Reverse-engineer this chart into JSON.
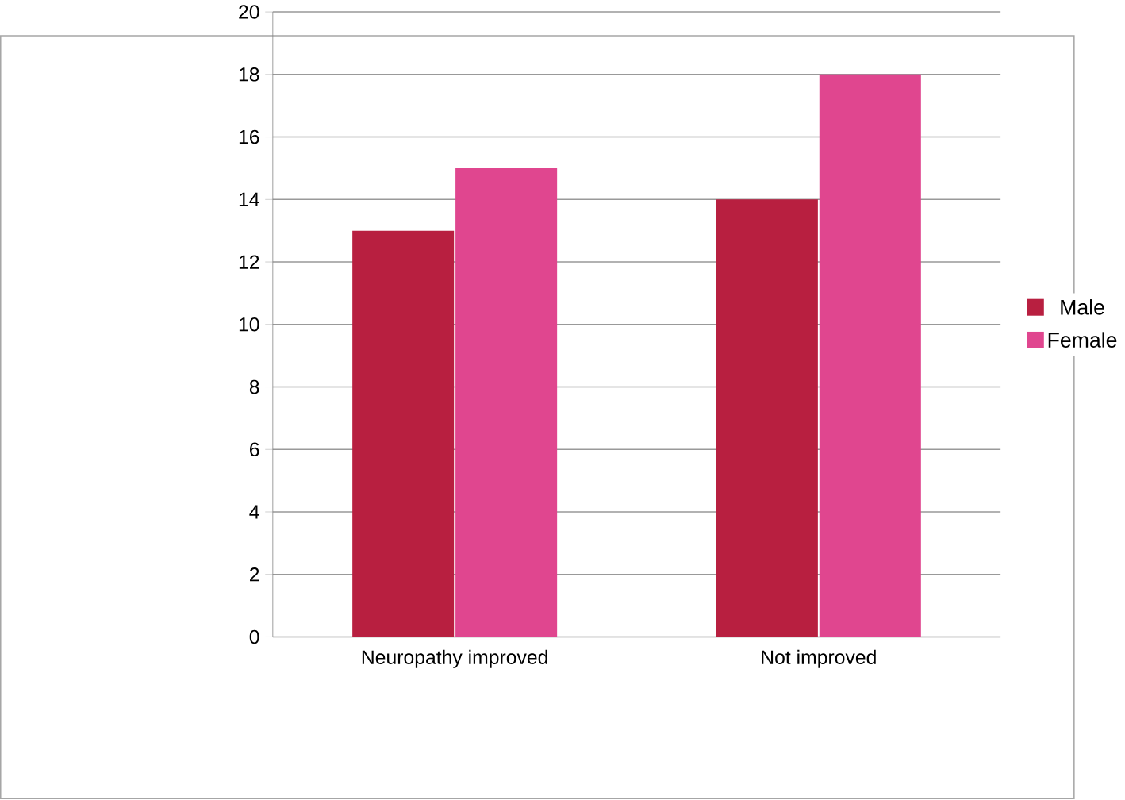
{
  "chart_data": {
    "type": "bar",
    "categories": [
      "Neuropathy improved",
      "Not improved"
    ],
    "series": [
      {
        "name": "Male",
        "color": "#b81f40",
        "values": [
          13,
          14
        ]
      },
      {
        "name": "Female",
        "color": "#e0468f",
        "values": [
          15,
          18
        ]
      }
    ],
    "ylim": [
      0,
      20
    ],
    "yticks": [
      0,
      2,
      4,
      6,
      8,
      10,
      12,
      14,
      16,
      18,
      20
    ],
    "grid": "y",
    "legend": "right"
  }
}
